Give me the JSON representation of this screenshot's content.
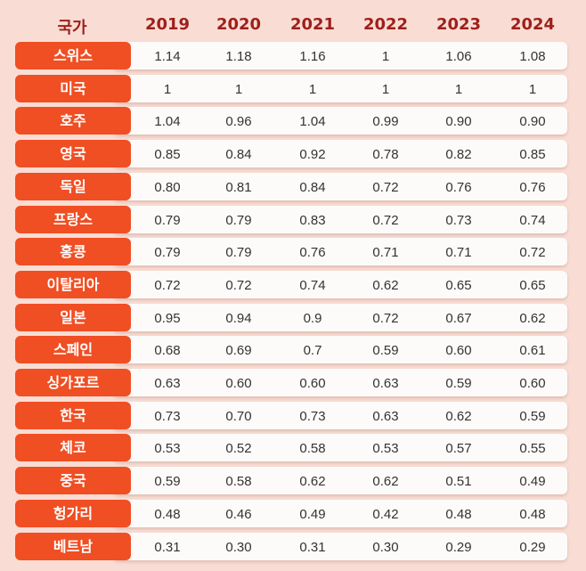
{
  "chart_data": {
    "type": "table",
    "header": [
      "국가",
      "2019",
      "2020",
      "2021",
      "2022",
      "2023",
      "2024"
    ],
    "rows": [
      {
        "country": "스위스",
        "values": [
          "1.14",
          "1.18",
          "1.16",
          "1",
          "1.06",
          "1.08"
        ]
      },
      {
        "country": "미국",
        "values": [
          "1",
          "1",
          "1",
          "1",
          "1",
          "1"
        ]
      },
      {
        "country": "호주",
        "values": [
          "1.04",
          "0.96",
          "1.04",
          "0.99",
          "0.90",
          "0.90"
        ]
      },
      {
        "country": "영국",
        "values": [
          "0.85",
          "0.84",
          "0.92",
          "0.78",
          "0.82",
          "0.85"
        ]
      },
      {
        "country": "독일",
        "values": [
          "0.80",
          "0.81",
          "0.84",
          "0.72",
          "0.76",
          "0.76"
        ]
      },
      {
        "country": "프랑스",
        "values": [
          "0.79",
          "0.79",
          "0.83",
          "0.72",
          "0.73",
          "0.74"
        ]
      },
      {
        "country": "홍콩",
        "values": [
          "0.79",
          "0.79",
          "0.76",
          "0.71",
          "0.71",
          "0.72"
        ]
      },
      {
        "country": "이탈리아",
        "values": [
          "0.72",
          "0.72",
          "0.74",
          "0.62",
          "0.65",
          "0.65"
        ]
      },
      {
        "country": "일본",
        "values": [
          "0.95",
          "0.94",
          "0.9",
          "0.72",
          "0.67",
          "0.62"
        ]
      },
      {
        "country": "스페인",
        "values": [
          "0.68",
          "0.69",
          "0.7",
          "0.59",
          "0.60",
          "0.61"
        ]
      },
      {
        "country": "싱가포르",
        "values": [
          "0.63",
          "0.60",
          "0.60",
          "0.63",
          "0.59",
          "0.60"
        ]
      },
      {
        "country": "한국",
        "values": [
          "0.73",
          "0.70",
          "0.73",
          "0.63",
          "0.62",
          "0.59"
        ]
      },
      {
        "country": "체코",
        "values": [
          "0.53",
          "0.52",
          "0.58",
          "0.53",
          "0.57",
          "0.55"
        ]
      },
      {
        "country": "중국",
        "values": [
          "0.59",
          "0.58",
          "0.62",
          "0.62",
          "0.51",
          "0.49"
        ]
      },
      {
        "country": "헝가리",
        "values": [
          "0.48",
          "0.46",
          "0.49",
          "0.42",
          "0.48",
          "0.48"
        ]
      },
      {
        "country": "베트남",
        "values": [
          "0.31",
          "0.30",
          "0.31",
          "0.30",
          "0.29",
          "0.29"
        ]
      }
    ],
    "colors": {
      "background": "#f9ddd4",
      "label_fill": "#f04e23",
      "header_text": "#9e1f1a"
    }
  }
}
